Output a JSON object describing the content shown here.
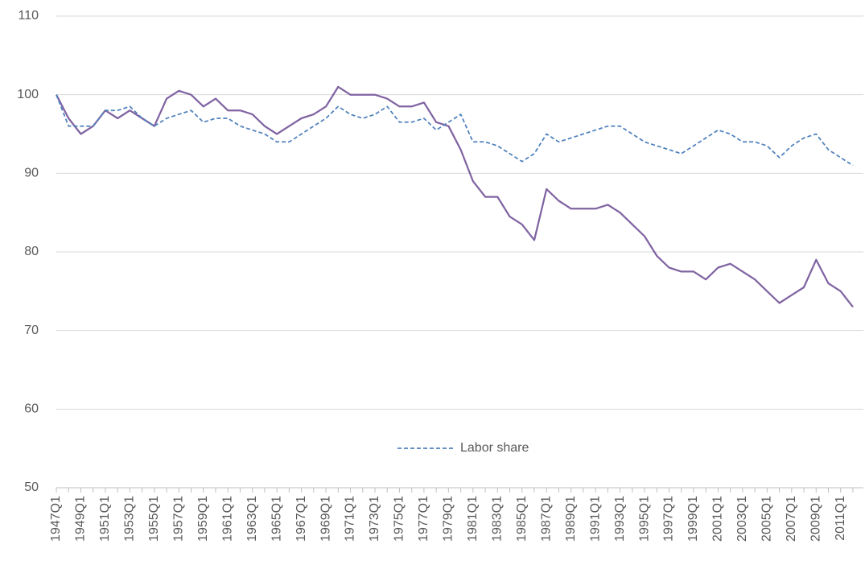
{
  "chart_data": {
    "type": "line",
    "categories": [
      "1947Q1",
      null,
      "1949Q1",
      null,
      "1951Q1",
      null,
      "1953Q1",
      null,
      "1955Q1",
      null,
      "1957Q1",
      null,
      "1959Q1",
      null,
      "1961Q1",
      null,
      "1963Q1",
      null,
      "1965Q1",
      null,
      "1967Q1",
      null,
      "1969Q1",
      null,
      "1971Q1",
      null,
      "1973Q1",
      null,
      "1975Q1",
      null,
      "1977Q1",
      null,
      "1979Q1",
      null,
      "1981Q1",
      null,
      "1983Q1",
      null,
      "1985Q1",
      null,
      "1987Q1",
      null,
      "1989Q1",
      null,
      "1991Q1",
      null,
      "1993Q1",
      null,
      "1995Q1",
      null,
      "1997Q1",
      null,
      "1999Q1",
      null,
      "2001Q1",
      null,
      "2003Q1",
      null,
      "2005Q1",
      null,
      "2007Q1",
      null,
      "2009Q1",
      null,
      "2011Q1",
      null
    ],
    "series": [
      {
        "color": "#8064a2",
        "dashed": false,
        "values": [
          100,
          97,
          95,
          96,
          98,
          97,
          98,
          97,
          96,
          99.5,
          100.5,
          100,
          98.5,
          99.5,
          98,
          98,
          97.5,
          96,
          95,
          96,
          97,
          97.5,
          98.5,
          101,
          100,
          100,
          100,
          99.5,
          98.5,
          98.5,
          99,
          96.5,
          96,
          93,
          89,
          87,
          87,
          84.5,
          83.5,
          81.5,
          88,
          86.5,
          85.5,
          85.5,
          85.5,
          86,
          85,
          83.5,
          82,
          79.5,
          78,
          77.5,
          77.5,
          76.5,
          78,
          78.5,
          77.5,
          76.5,
          75,
          73.5,
          74.5,
          75.5,
          79,
          76,
          75,
          73
        ]
      },
      {
        "name": "Labor share",
        "color": "#4f81bd",
        "dashed": true,
        "values": [
          100,
          96,
          96,
          96,
          98,
          98,
          98.5,
          97,
          96,
          97,
          97.5,
          98,
          96.5,
          97,
          97,
          96,
          95.5,
          95,
          94,
          94,
          95,
          96,
          97,
          98.5,
          97.5,
          97,
          97.5,
          98.5,
          96.5,
          96.5,
          97,
          95.5,
          96.5,
          97.5,
          94,
          94,
          93.5,
          92.5,
          91.5,
          92.5,
          95,
          94,
          94.5,
          95,
          95.5,
          96,
          96,
          95,
          94,
          93.5,
          93,
          92.5,
          93.5,
          94.5,
          95.5,
          95,
          94,
          94,
          93.5,
          92,
          93.5,
          94.5,
          95,
          93,
          92,
          91
        ]
      }
    ],
    "ylim": [
      50,
      110
    ],
    "yticks": [
      50,
      60,
      70,
      80,
      90,
      100,
      110
    ],
    "grid": true
  }
}
